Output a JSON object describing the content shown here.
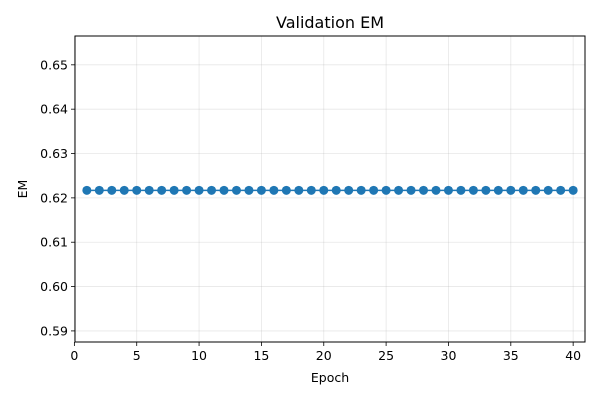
{
  "chart_data": {
    "type": "line",
    "title": "Validation EM",
    "xlabel": "Epoch",
    "ylabel": "EM",
    "xlim": [
      0.05,
      40.95
    ],
    "ylim": [
      0.5875,
      0.6565
    ],
    "xticks": [
      0,
      5,
      10,
      15,
      20,
      25,
      30,
      35,
      40
    ],
    "yticks": [
      0.59,
      0.6,
      0.61,
      0.62,
      0.63,
      0.64,
      0.65
    ],
    "ytick_labels": [
      "0.59",
      "0.60",
      "0.61",
      "0.62",
      "0.63",
      "0.64",
      "0.65"
    ],
    "grid": true,
    "legend": "none",
    "series": [
      {
        "color": "#1f77b4",
        "marker": "circle",
        "x": [
          1,
          2,
          3,
          4,
          5,
          6,
          7,
          8,
          9,
          10,
          11,
          12,
          13,
          14,
          15,
          16,
          17,
          18,
          19,
          20,
          21,
          22,
          23,
          24,
          25,
          26,
          27,
          28,
          29,
          30,
          31,
          32,
          33,
          34,
          35,
          36,
          37,
          38,
          39,
          40
        ],
        "y": [
          0.6217,
          0.6217,
          0.6217,
          0.6217,
          0.6217,
          0.6217,
          0.6217,
          0.6217,
          0.6217,
          0.6217,
          0.6217,
          0.6217,
          0.6217,
          0.6217,
          0.6217,
          0.6217,
          0.6217,
          0.6217,
          0.6217,
          0.6217,
          0.6217,
          0.6217,
          0.6217,
          0.6217,
          0.6217,
          0.6217,
          0.6217,
          0.6217,
          0.6217,
          0.6217,
          0.6217,
          0.6217,
          0.6217,
          0.6217,
          0.6217,
          0.6217,
          0.6217,
          0.6217,
          0.6217,
          0.6217
        ]
      }
    ]
  }
}
